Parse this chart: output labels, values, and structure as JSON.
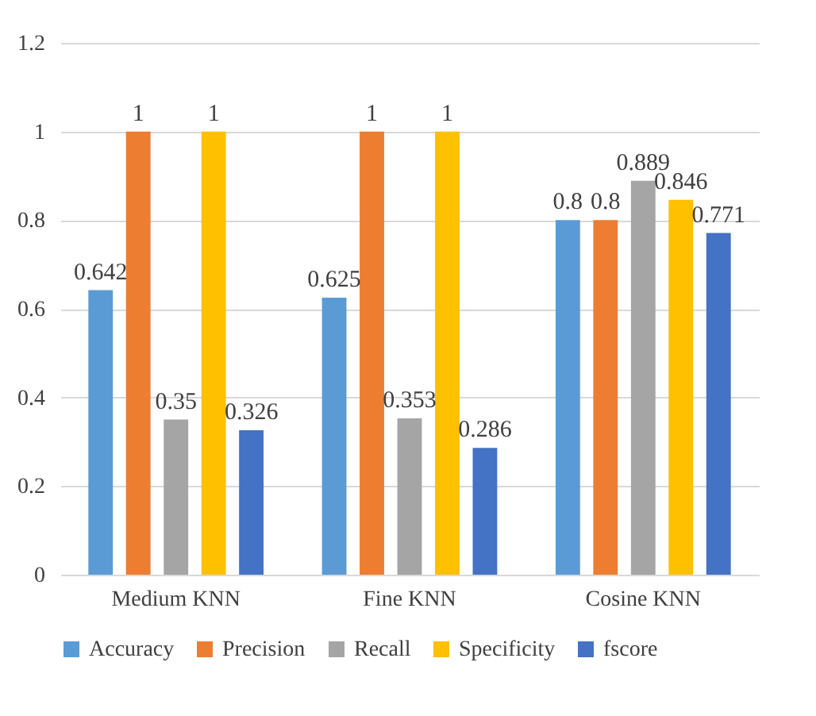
{
  "chart_data": {
    "type": "bar",
    "categories": [
      "Medium KNN",
      "Fine KNN",
      "Cosine KNN"
    ],
    "series": [
      {
        "name": "Accuracy",
        "color": "#5b9bd5",
        "values": [
          0.642,
          0.625,
          0.8
        ]
      },
      {
        "name": "Precision",
        "color": "#ed7d31",
        "values": [
          1,
          1,
          0.8
        ]
      },
      {
        "name": "Recall",
        "color": "#a5a5a5",
        "values": [
          0.35,
          0.353,
          0.889
        ]
      },
      {
        "name": "Specificity",
        "color": "#ffc000",
        "values": [
          1,
          1,
          0.846
        ]
      },
      {
        "name": "fscore",
        "color": "#4472c4",
        "values": [
          0.326,
          0.286,
          0.771
        ]
      }
    ],
    "ylim": [
      0,
      1.2
    ],
    "yticks": [
      0,
      0.2,
      0.4,
      0.6,
      0.8,
      1,
      1.2
    ],
    "grid": "y",
    "legend": "bottom",
    "data_labels": true
  }
}
